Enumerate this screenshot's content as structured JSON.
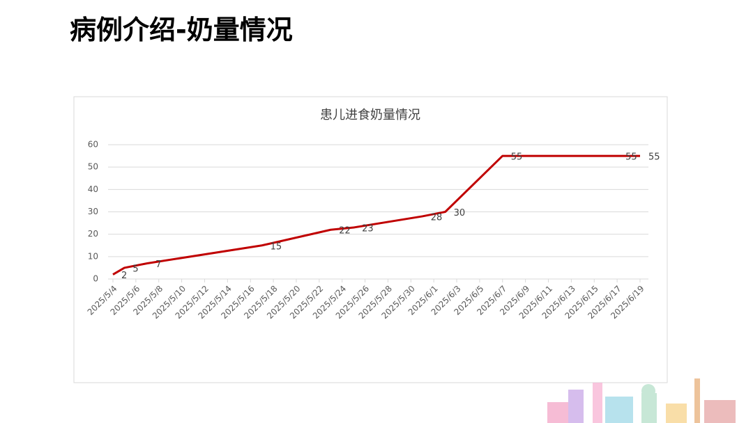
{
  "slide_title": "病例介绍-奶量情况",
  "chart_data": {
    "type": "line",
    "title": "患儿进食奶量情况",
    "x": [
      "2025/5/4",
      "2025/5/5",
      "2025/5/7",
      "2025/5/17",
      "2025/5/23",
      "2025/5/25",
      "2025/5/31",
      "2025/6/2",
      "2025/6/7",
      "2025/6/17",
      "2025/6/19"
    ],
    "series": [
      {
        "color": "#c00000",
        "values": [
          2,
          5,
          7,
          15,
          22,
          23,
          28,
          30,
          55,
          55,
          55
        ]
      }
    ],
    "xlim": [
      "2025/5/4",
      "2025/6/19"
    ],
    "xticks": [
      "2025/5/4",
      "2025/5/6",
      "2025/5/8",
      "2025/5/10",
      "2025/5/12",
      "2025/5/14",
      "2025/5/16",
      "2025/5/18",
      "2025/5/20",
      "2025/5/22",
      "2025/5/24",
      "2025/5/26",
      "2025/5/28",
      "2025/5/30",
      "2025/6/1",
      "2025/6/3",
      "2025/6/5",
      "2025/6/7",
      "2025/6/9",
      "2025/6/11",
      "2025/6/13",
      "2025/6/15",
      "2025/6/17",
      "2025/6/19"
    ],
    "ylim": [
      0,
      60
    ],
    "yticks": [
      0,
      10,
      20,
      30,
      40,
      50,
      60
    ],
    "grid": true,
    "data_labels": true
  }
}
